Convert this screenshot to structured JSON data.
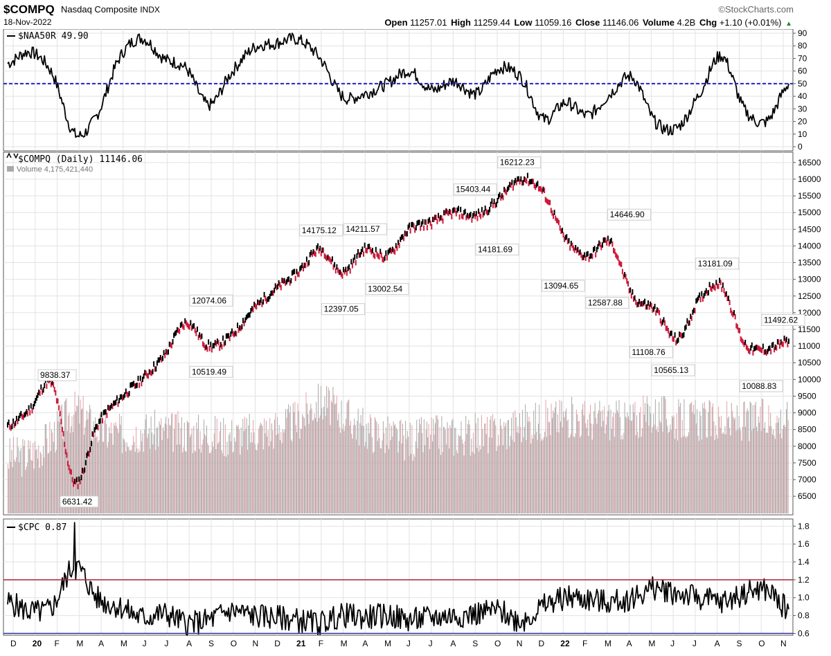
{
  "header": {
    "symbol": "$COMPQ",
    "name": "Nasdaq Composite",
    "exchange": "INDX",
    "date": "18-Nov-2022",
    "brand": "©StockCharts.com",
    "open_label": "Open",
    "open": "11257.01",
    "high_label": "High",
    "high": "11259.44",
    "low_label": "Low",
    "low": "11059.16",
    "close_label": "Close",
    "close": "11146.06",
    "volume_label": "Volume",
    "volume": "4.2B",
    "chg_label": "Chg",
    "chg": "+1.10 (+0.01%)",
    "chg_arrow": "▲"
  },
  "colors": {
    "up": "#000000",
    "down": "#cc1a3a",
    "ref_line": "#2020cc",
    "cpc_upper": "#b0203a",
    "cpc_lower": "#3030a0",
    "grid": "#e2e2e2"
  },
  "chart_data": [
    {
      "type": "line",
      "label": "$NAA50R 49.90",
      "ylim": [
        0,
        90
      ],
      "yticks": [
        "0",
        "10",
        "20",
        "30",
        "40",
        "50",
        "60",
        "70",
        "80",
        "90"
      ],
      "reference_line": 50,
      "x": [
        "2019-12",
        "2020-01",
        "2020-02",
        "2020-03",
        "2020-04",
        "2020-05",
        "2020-06",
        "2020-07",
        "2020-08",
        "2020-09",
        "2020-10",
        "2020-11",
        "2020-12",
        "2021-01",
        "2021-02",
        "2021-03",
        "2021-04",
        "2021-05",
        "2021-06",
        "2021-07",
        "2021-08",
        "2021-09",
        "2021-10",
        "2021-11",
        "2021-12",
        "2022-01",
        "2022-02",
        "2022-03",
        "2022-04",
        "2022-05",
        "2022-06",
        "2022-07",
        "2022-08",
        "2022-09",
        "2022-10",
        "2022-11"
      ],
      "values": [
        66,
        75,
        58,
        10,
        25,
        70,
        86,
        70,
        62,
        33,
        58,
        78,
        82,
        85,
        70,
        40,
        42,
        50,
        60,
        45,
        52,
        42,
        62,
        55,
        22,
        35,
        25,
        42,
        55,
        20,
        15,
        42,
        72,
        30,
        20,
        50
      ]
    },
    {
      "type": "line",
      "label": "$COMPQ (Daily) 11146.06",
      "volume_label": "Volume 4,175,421,440",
      "ylim": [
        6400,
        16600
      ],
      "yticks": [
        "6500",
        "7000",
        "7500",
        "8000",
        "8500",
        "9000",
        "9500",
        "10000",
        "10500",
        "11000",
        "11500",
        "12000",
        "12500",
        "13000",
        "13500",
        "14000",
        "14500",
        "15000",
        "15500",
        "16000",
        "16500"
      ],
      "x_ticks": [
        "D",
        "20",
        "F",
        "M",
        "A",
        "M",
        "J",
        "J",
        "A",
        "S",
        "O",
        "N",
        "D",
        "21",
        "F",
        "M",
        "A",
        "M",
        "J",
        "J",
        "A",
        "S",
        "O",
        "N",
        "D",
        "22",
        "F",
        "M",
        "A",
        "M",
        "J",
        "J",
        "A",
        "S",
        "O",
        "N"
      ],
      "x": [
        "2019-12",
        "2020-01",
        "2020-02",
        "2020-03",
        "2020-04",
        "2020-05",
        "2020-06",
        "2020-07",
        "2020-08",
        "2020-09",
        "2020-10",
        "2020-11",
        "2020-12",
        "2021-01",
        "2021-02",
        "2021-03",
        "2021-04",
        "2021-05",
        "2021-06",
        "2021-07",
        "2021-08",
        "2021-09",
        "2021-10",
        "2021-11",
        "2021-12",
        "2022-01",
        "2022-02",
        "2022-03",
        "2022-04",
        "2022-05",
        "2022-06",
        "2022-07",
        "2022-08",
        "2022-09",
        "2022-10",
        "2022-11"
      ],
      "values": [
        8600,
        9100,
        9838,
        6900,
        8600,
        9400,
        10000,
        10700,
        11700,
        11000,
        11300,
        12100,
        12700,
        13200,
        13900,
        13200,
        13900,
        13700,
        14500,
        14700,
        15000,
        14900,
        15400,
        16000,
        15600,
        14200,
        13700,
        14100,
        12500,
        12100,
        11200,
        12400,
        12800,
        11100,
        10900,
        11146
      ],
      "volume_index": [
        40,
        42,
        55,
        72,
        60,
        56,
        58,
        58,
        57,
        56,
        55,
        57,
        60,
        66,
        78,
        70,
        60,
        55,
        52,
        55,
        55,
        56,
        57,
        63,
        65,
        68,
        66,
        66,
        66,
        70,
        66,
        66,
        64,
        65,
        66,
        66
      ],
      "annotations": [
        {
          "x": "2020-02",
          "value": 9838.37,
          "text": "9838.37"
        },
        {
          "x": "2020-03",
          "value": 6631.42,
          "text": "6631.42"
        },
        {
          "x": "2020-09",
          "value": 12074.06,
          "text": "12074.06"
        },
        {
          "x": "2020-09",
          "value": 10519.49,
          "text": "10519.49"
        },
        {
          "x": "2021-02",
          "value": 14175.12,
          "text": "14175.12"
        },
        {
          "x": "2021-03",
          "value": 12397.05,
          "text": "12397.05"
        },
        {
          "x": "2021-04",
          "value": 14211.57,
          "text": "14211.57"
        },
        {
          "x": "2021-05",
          "value": 13002.54,
          "text": "13002.54"
        },
        {
          "x": "2021-09",
          "value": 15403.44,
          "text": "15403.44"
        },
        {
          "x": "2021-10",
          "value": 14181.69,
          "text": "14181.69"
        },
        {
          "x": "2021-11",
          "value": 16212.23,
          "text": "16212.23"
        },
        {
          "x": "2022-01",
          "value": 13094.65,
          "text": "13094.65"
        },
        {
          "x": "2022-03",
          "value": 12587.88,
          "text": "12587.88"
        },
        {
          "x": "2022-04",
          "value": 14646.9,
          "text": "14646.90"
        },
        {
          "x": "2022-05",
          "value": 11108.76,
          "text": "11108.76"
        },
        {
          "x": "2022-06",
          "value": 10565.13,
          "text": "10565.13"
        },
        {
          "x": "2022-08",
          "value": 13181.09,
          "text": "13181.09"
        },
        {
          "x": "2022-10",
          "value": 10088.83,
          "text": "10088.83"
        },
        {
          "x": "2022-11",
          "value": 11492.62,
          "text": "11492.62"
        }
      ]
    },
    {
      "type": "line",
      "label": "$CPC 0.87",
      "ylim": [
        0.58,
        1.88
      ],
      "yticks": [
        "0.6",
        "0.8",
        "1.0",
        "1.2",
        "1.4",
        "1.6",
        "1.8"
      ],
      "reference_lines": [
        1.2,
        0.6
      ],
      "x_ticks": [
        "D",
        "20",
        "F",
        "M",
        "A",
        "M",
        "J",
        "J",
        "A",
        "S",
        "O",
        "N",
        "D",
        "21",
        "F",
        "M",
        "A",
        "M",
        "J",
        "J",
        "A",
        "S",
        "O",
        "N",
        "D",
        "22",
        "F",
        "M",
        "A",
        "M",
        "J",
        "J",
        "A",
        "S",
        "O",
        "N"
      ],
      "x": [
        "2019-12",
        "2020-01",
        "2020-02",
        "2020-03",
        "2020-04",
        "2020-05",
        "2020-06",
        "2020-07",
        "2020-08",
        "2020-09",
        "2020-10",
        "2020-11",
        "2020-12",
        "2021-01",
        "2021-02",
        "2021-03",
        "2021-04",
        "2021-05",
        "2021-06",
        "2021-07",
        "2021-08",
        "2021-09",
        "2021-10",
        "2021-11",
        "2021-12",
        "2022-01",
        "2022-02",
        "2022-03",
        "2022-04",
        "2022-05",
        "2022-06",
        "2022-07",
        "2022-08",
        "2022-09",
        "2022-10",
        "2022-11"
      ],
      "values": [
        0.95,
        0.85,
        0.9,
        1.35,
        1.0,
        0.9,
        0.78,
        0.82,
        0.72,
        0.75,
        0.85,
        0.8,
        0.78,
        0.75,
        0.72,
        0.8,
        0.78,
        0.8,
        0.75,
        0.78,
        0.8,
        0.82,
        0.85,
        0.75,
        0.9,
        1.0,
        0.98,
        0.95,
        1.0,
        1.1,
        1.05,
        1.0,
        0.95,
        1.05,
        1.08,
        0.87
      ]
    }
  ]
}
